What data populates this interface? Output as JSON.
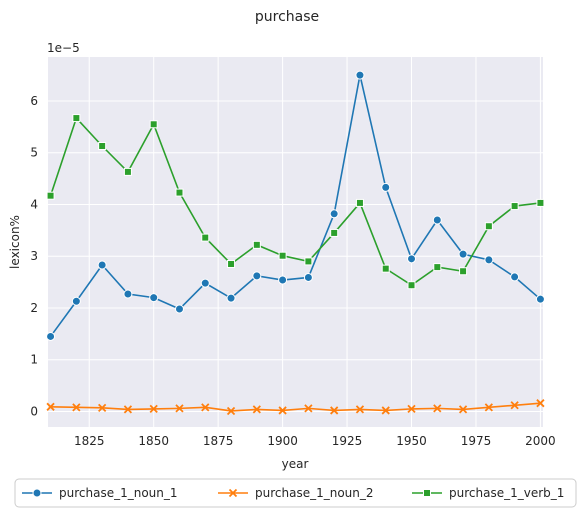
{
  "chart_data": {
    "type": "line",
    "title": "purchase",
    "xlabel": "year",
    "ylabel": "lexicon%",
    "y_scale_label": "1e−5",
    "xlim": [
      1809,
      2001
    ],
    "ylim": [
      -0.3,
      6.85
    ],
    "x_ticks": [
      1825,
      1850,
      1875,
      1900,
      1925,
      1950,
      1975,
      2000
    ],
    "y_ticks": [
      0,
      1,
      2,
      3,
      4,
      5,
      6
    ],
    "grid": true,
    "legend_position": "bottom",
    "x": [
      1810,
      1820,
      1830,
      1840,
      1850,
      1860,
      1870,
      1880,
      1890,
      1900,
      1910,
      1920,
      1930,
      1940,
      1950,
      1960,
      1970,
      1980,
      1990,
      2000
    ],
    "series": [
      {
        "name": "purchase_1_noun_1",
        "color": "#1f77b4",
        "marker": "circle",
        "values": [
          1.45,
          2.13,
          2.83,
          2.27,
          2.2,
          1.98,
          2.48,
          2.19,
          2.62,
          2.54,
          2.59,
          3.82,
          6.5,
          4.33,
          2.95,
          3.7,
          3.04,
          2.93,
          2.6,
          2.17
        ]
      },
      {
        "name": "purchase_1_noun_2",
        "color": "#ff7f0e",
        "marker": "x",
        "values": [
          0.09,
          0.08,
          0.07,
          0.04,
          0.05,
          0.06,
          0.08,
          0.01,
          0.04,
          0.02,
          0.06,
          0.02,
          0.04,
          0.02,
          0.05,
          0.06,
          0.04,
          0.08,
          0.12,
          0.16
        ]
      },
      {
        "name": "purchase_1_verb_1",
        "color": "#2ca02c",
        "marker": "square",
        "values": [
          4.17,
          5.67,
          5.13,
          4.63,
          5.55,
          4.23,
          3.36,
          2.85,
          3.22,
          3.01,
          2.9,
          3.45,
          4.03,
          2.76,
          2.44,
          2.79,
          2.71,
          3.58,
          3.97,
          4.03
        ]
      }
    ]
  }
}
